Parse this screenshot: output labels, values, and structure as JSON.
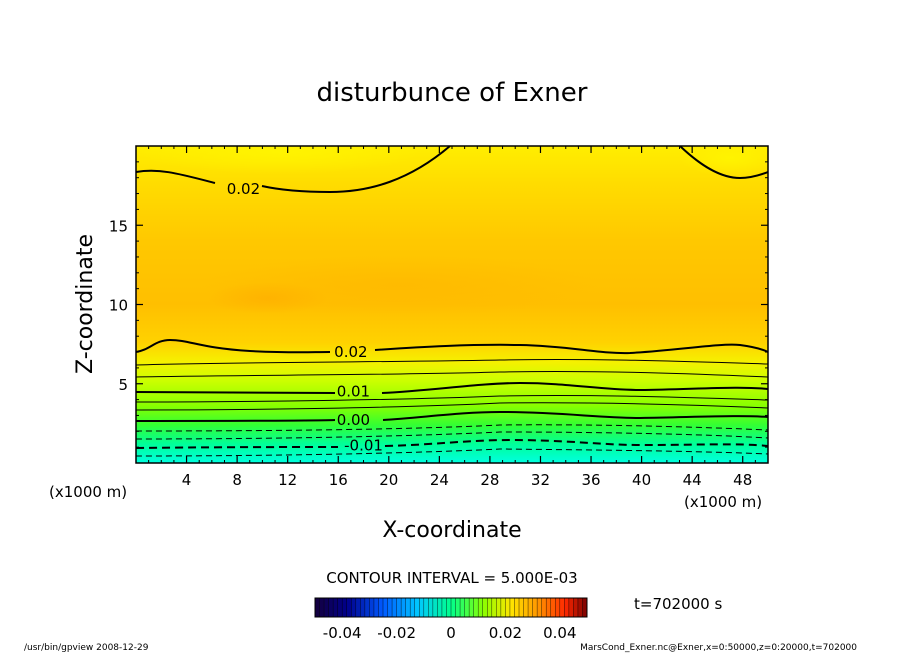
{
  "chart_data": {
    "type": "heatmap",
    "title": "disturbunce of Exner",
    "xlabel": "X-coordinate",
    "ylabel": "Z-coordinate",
    "x_unit": "(x1000 m)",
    "y_unit": "(x1000 m)",
    "xlim": [
      0,
      50
    ],
    "ylim": [
      0,
      20
    ],
    "x_ticks": [
      4,
      8,
      12,
      16,
      20,
      24,
      28,
      32,
      36,
      40,
      44,
      48
    ],
    "y_ticks": [
      5,
      10,
      15
    ],
    "contour_labels": [
      {
        "text": "0.02",
        "x": 8.5,
        "z": 17.3
      },
      {
        "text": "0.02",
        "x": 17.0,
        "z": 7.0
      },
      {
        "text": "0.01",
        "x": 17.2,
        "z": 4.5
      },
      {
        "text": "0.00",
        "x": 17.2,
        "z": 2.7
      },
      {
        "text": "-0.01",
        "x": 18.0,
        "z": 1.1
      }
    ],
    "contour_interval_text": "CONTOUR INTERVAL = 5.000E-03",
    "colorbar": {
      "range": [
        -0.05,
        0.05
      ],
      "tick_labels": [
        "-0.04",
        "-0.02",
        "0",
        "0.02",
        "0.04"
      ],
      "tick_values": [
        -0.04,
        -0.02,
        0,
        0.02,
        0.04
      ]
    },
    "time_label": "t=702000 s"
  },
  "footer": {
    "left": "/usr/bin/gpview   2008-12-29",
    "right": "MarsCond_Exner.nc@Exner,x=0:50000,z=0:20000,t=702000"
  }
}
